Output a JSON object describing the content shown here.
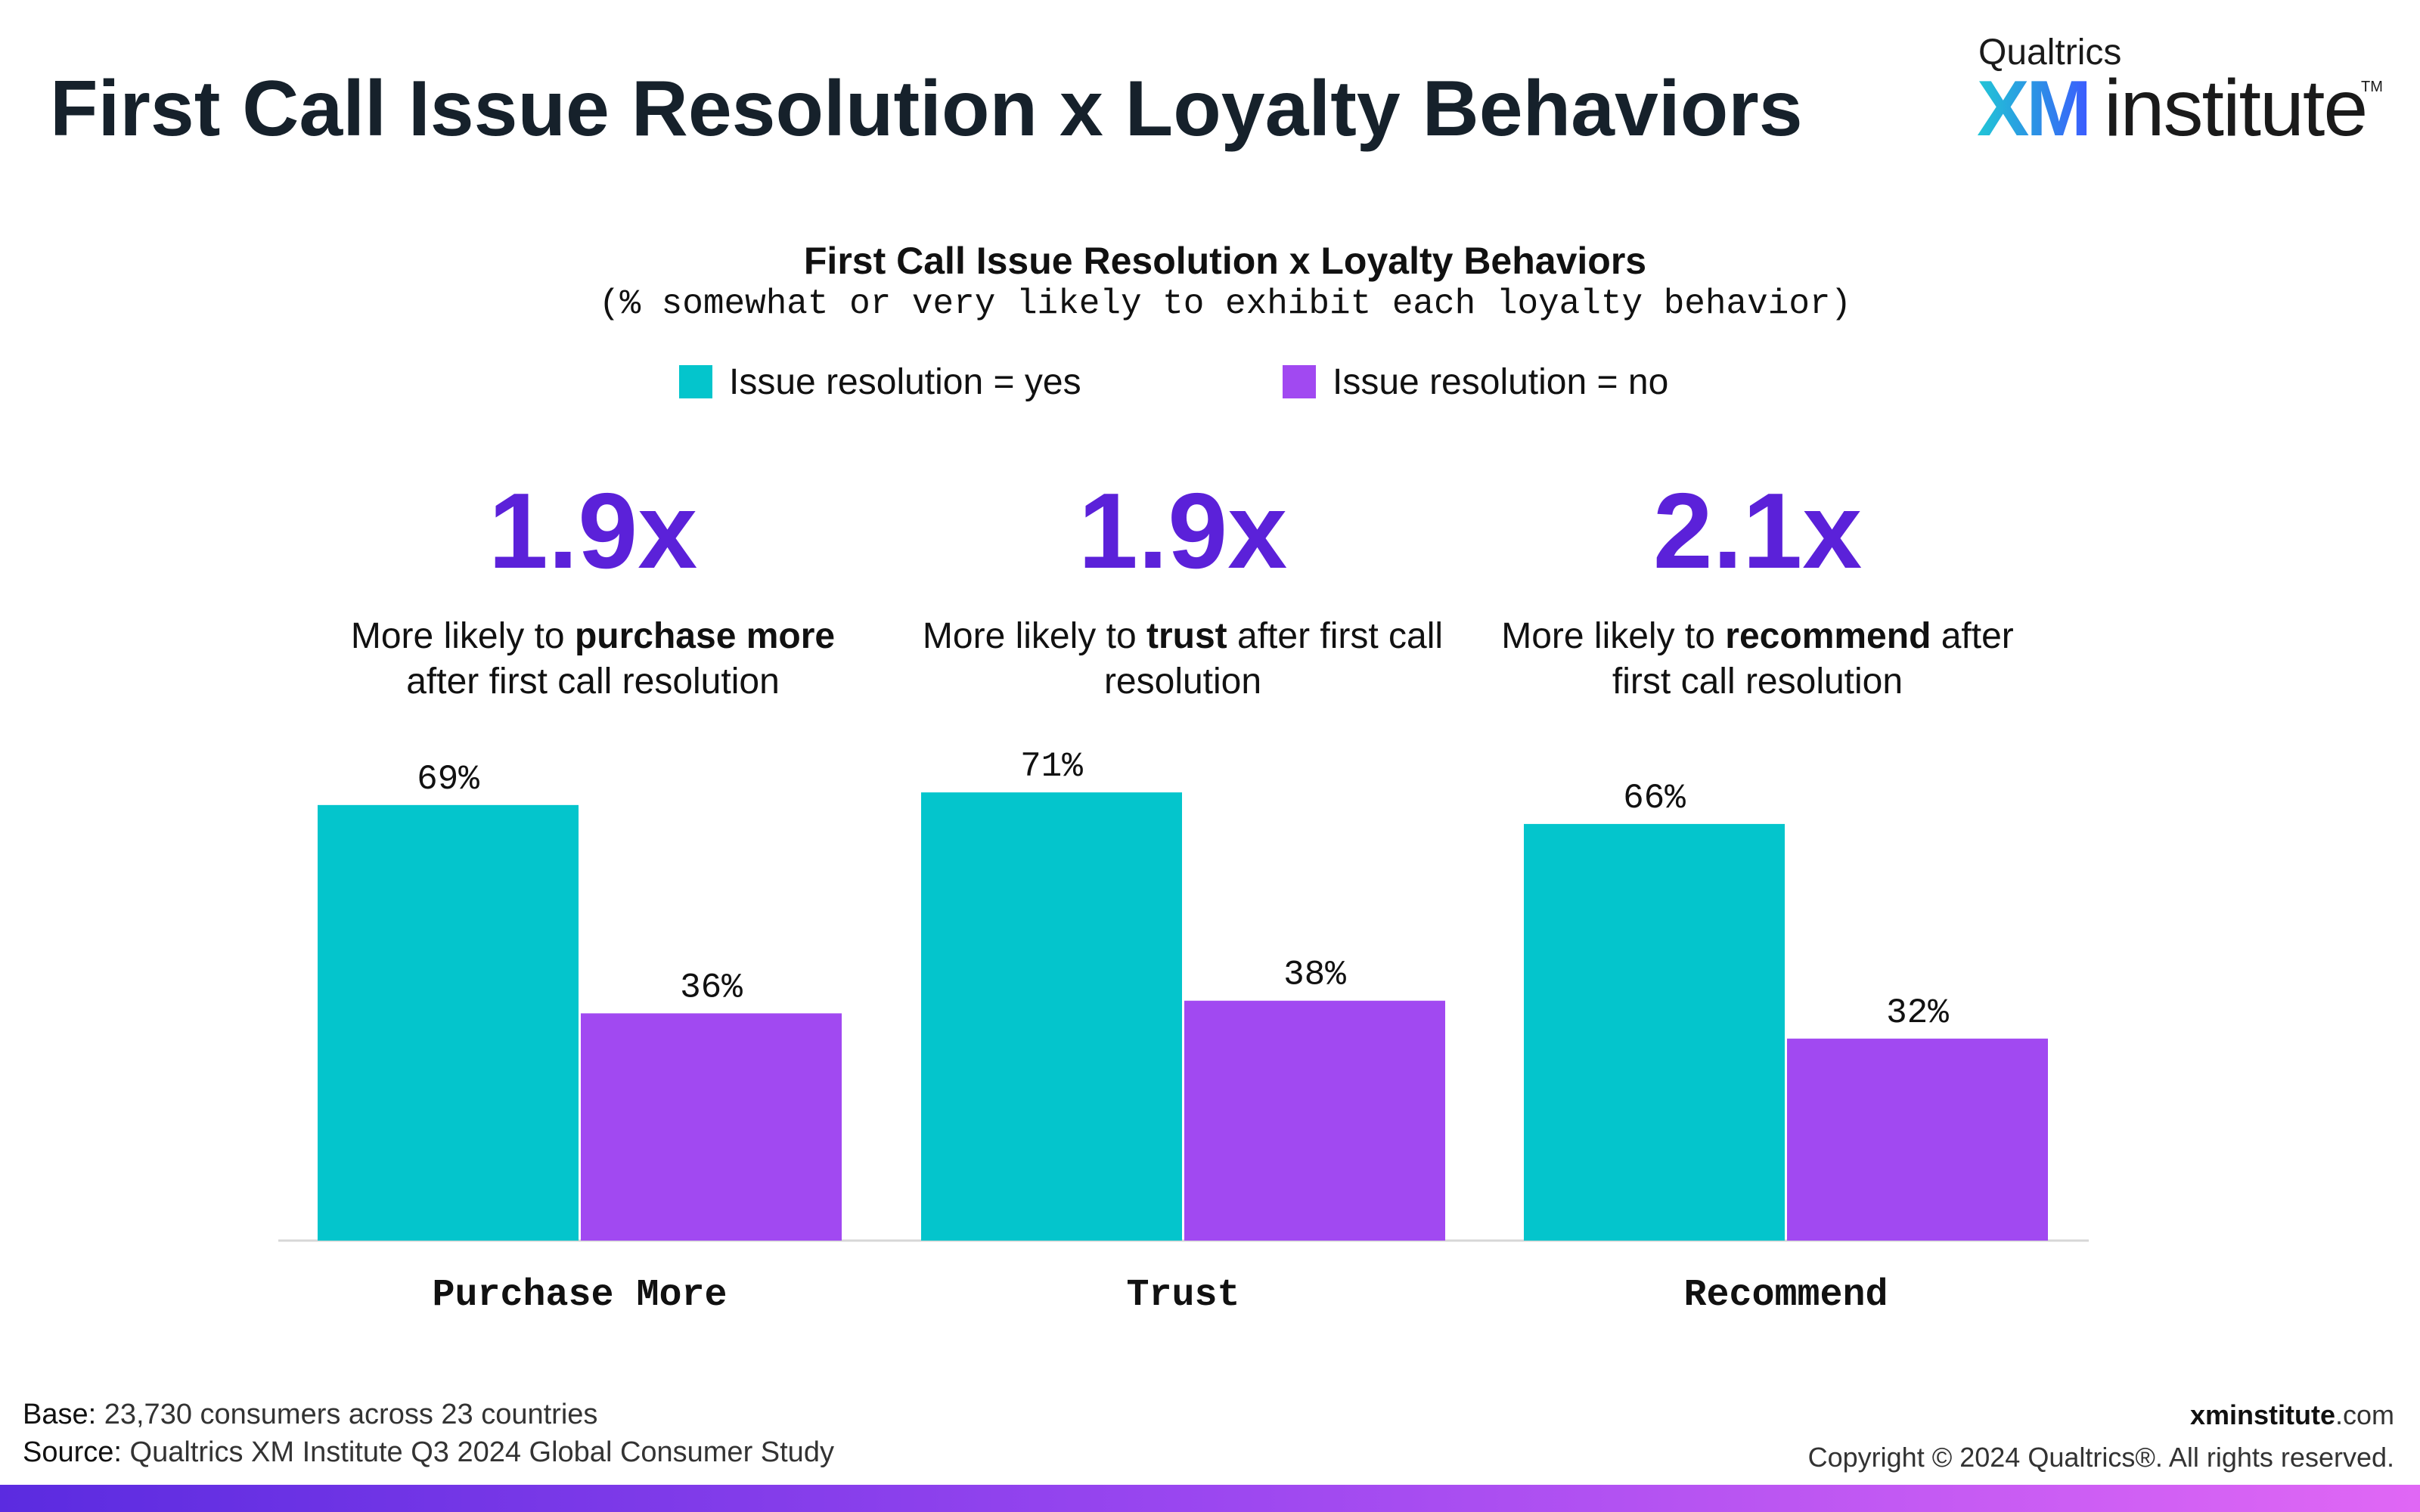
{
  "page": {
    "title": "First Call Issue Resolution x Loyalty Behaviors"
  },
  "logo": {
    "top": "Qualtrics",
    "xm": "XM",
    "institute": "institute",
    "tm": "TM"
  },
  "chart_data": {
    "type": "bar",
    "title": "First Call Issue Resolution x Loyalty Behaviors",
    "subtitle": "(% somewhat or very likely to exhibit each loyalty behavior)",
    "categories": [
      "Purchase More",
      "Trust",
      "Recommend"
    ],
    "series": [
      {
        "name": "Issue resolution = yes",
        "values": [
          69,
          71,
          66
        ],
        "labels": [
          "69%",
          "71%",
          "66%"
        ],
        "color": "#04c5cc"
      },
      {
        "name": "Issue resolution = no",
        "values": [
          36,
          38,
          32
        ],
        "labels": [
          "36%",
          "38%",
          "32%"
        ],
        "color": "#a149f1"
      }
    ],
    "ylim": [
      0,
      100
    ],
    "legend_position": "top-center",
    "grid": false
  },
  "callouts": [
    {
      "multiplier": "1.9x",
      "pre": "More likely to ",
      "bold": "purchase more",
      "post": " after first call resolution"
    },
    {
      "multiplier": "1.9x",
      "pre": "More likely to ",
      "bold": "trust",
      "post": " after first call resolution"
    },
    {
      "multiplier": "2.1x",
      "pre": "More likely to ",
      "bold": "recommend",
      "post": " after first call resolution"
    }
  ],
  "footer": {
    "base_label": "Base:",
    "base_text": " 23,730 consumers across 23 countries",
    "source_label": "Source:",
    "source_text": " Qualtrics XM Institute Q3 2024 Global Consumer Study",
    "site_bold": "xminstitute",
    "site_rest": ".com",
    "copyright": "Copyright © 2024 Qualtrics®. All rights reserved."
  },
  "colors": {
    "accent_purple": "#5b21d9",
    "title": "#16212b"
  }
}
